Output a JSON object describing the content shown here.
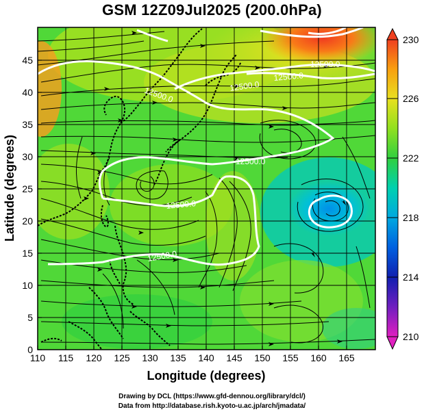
{
  "title": "GSM 12Z09Jul2025 (200.0hPa)",
  "x_axis": {
    "label": "Longitude (degrees)",
    "range": [
      110,
      170
    ],
    "ticks": [
      "110",
      "115",
      "120",
      "125",
      "130",
      "135",
      "140",
      "145",
      "150",
      "155",
      "160",
      "165"
    ]
  },
  "y_axis": {
    "label": "Latitude  (degrees)",
    "range": [
      0,
      50
    ],
    "ticks": [
      "0",
      "5",
      "10",
      "15",
      "20",
      "25",
      "30",
      "35",
      "40",
      "45"
    ]
  },
  "colorbar": {
    "ticks": [
      "210",
      "214",
      "218",
      "222",
      "226",
      "230"
    ],
    "range": [
      210,
      230
    ],
    "colors": [
      "#e020c0",
      "#6020c0",
      "#0020c0",
      "#0070e0",
      "#00b0d0",
      "#00d8a0",
      "#30d040",
      "#a0e020",
      "#f0e020",
      "#f8a010",
      "#f04020"
    ]
  },
  "contours": {
    "labels": [
      "12500.0",
      "12500.0",
      "12500.0",
      "12500.0",
      "12500.0",
      "12500.0",
      "12500.0"
    ],
    "color": "#ffffff"
  },
  "credits": [
    "Drawing by DCL (https://www.gfd-dennou.org/library/dcl/)",
    "Data from http://database.rish.kyoto-u.ac.jp/arch/jmadata/"
  ]
}
